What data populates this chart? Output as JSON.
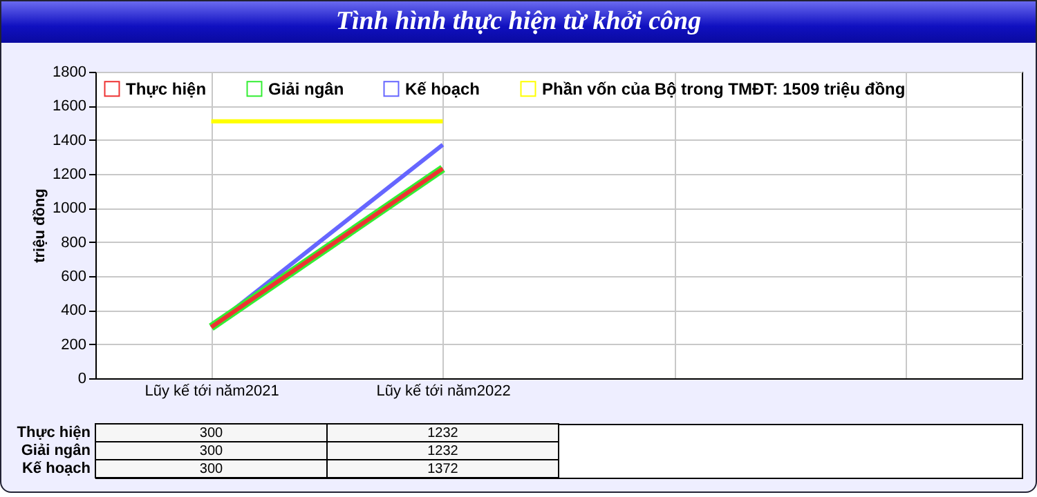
{
  "chart_data": {
    "type": "line",
    "title": "Tình hình thực hiện từ khởi công",
    "ylabel": "triệu đồng",
    "categories": [
      "Lũy kế tới năm2021",
      "Lũy kế tới năm2022",
      null,
      null
    ],
    "series": [
      {
        "name": "Thực hiện",
        "color": "#ee3333",
        "values": [
          300,
          1232,
          null,
          null
        ],
        "value_labels": [
          "300",
          "1232",
          null,
          null
        ]
      },
      {
        "name": "Giải ngân",
        "color": "#33ee33",
        "values": [
          300,
          1232,
          null,
          null
        ],
        "value_labels": [
          "300",
          "1232",
          null,
          null
        ]
      },
      {
        "name": "Kế hoạch",
        "color": "#6666ff",
        "values": [
          300,
          1372,
          null,
          null
        ],
        "value_labels": [
          "300",
          "1372",
          null,
          null
        ]
      },
      {
        "name": "Phần vốn của Bộ trong TMĐT: 1509 triệu đồng",
        "color": "#ffff00",
        "values": [
          1509,
          1509,
          null,
          null
        ]
      }
    ],
    "ylim": [
      0,
      1800
    ],
    "yticks": [
      0,
      200,
      400,
      600,
      800,
      1000,
      1200,
      1400,
      1600,
      1800
    ],
    "grid": true,
    "legend": "top left"
  }
}
